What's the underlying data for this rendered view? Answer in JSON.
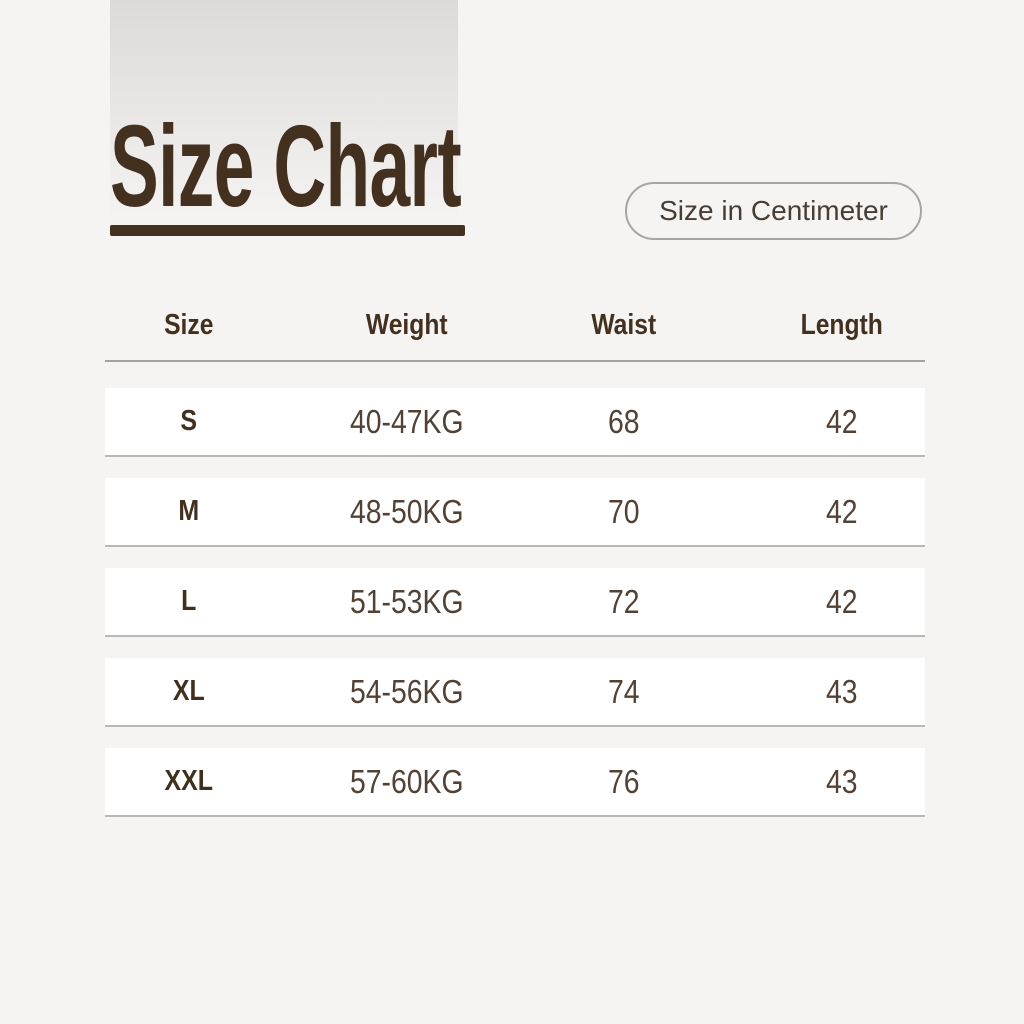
{
  "header": {
    "title": "Size Chart",
    "unit_badge": "Size in Centimeter"
  },
  "chart_data": {
    "type": "table",
    "title": "Size Chart",
    "unit": "Size in Centimeter",
    "columns": [
      "Size",
      "Weight",
      "Waist",
      "Length"
    ],
    "rows": [
      [
        "S",
        "40-47KG",
        "68",
        "42"
      ],
      [
        "M",
        "48-50KG",
        "70",
        "42"
      ],
      [
        "L",
        "51-53KG",
        "72",
        "42"
      ],
      [
        "XL",
        "54-56KG",
        "74",
        "43"
      ],
      [
        "XXL",
        "57-60KG",
        "76",
        "43"
      ]
    ]
  },
  "colors": {
    "background": "#f5f4f2",
    "accent_brown": "#44301f",
    "value_text": "#524236",
    "row_background": "#ffffff",
    "row_border": "#bab8b5",
    "header_divider": "#a6a39f",
    "pill_border": "#a8a4a0",
    "gradient_top": "#dbdad9"
  }
}
